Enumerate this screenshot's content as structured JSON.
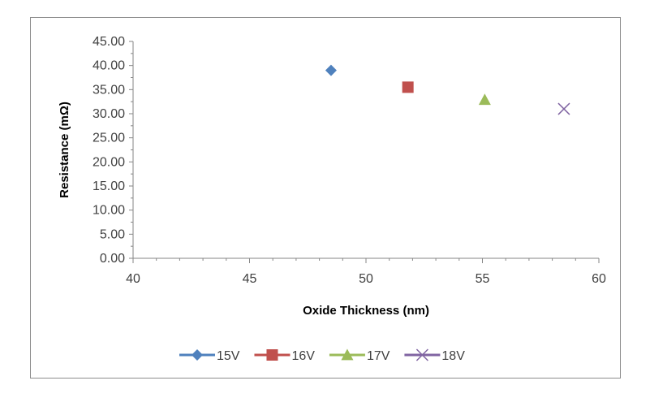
{
  "chart_data": {
    "type": "scatter",
    "xlabel": "Oxide Thickness (nm)",
    "ylabel": "Resistance (mΩ)",
    "xlim": [
      40,
      60
    ],
    "ylim": [
      0,
      45
    ],
    "x_ticks": [
      "40",
      "45",
      "50",
      "55",
      "60"
    ],
    "y_ticks": [
      "0.00",
      "5.00",
      "10.00",
      "15.00",
      "20.00",
      "25.00",
      "30.00",
      "35.00",
      "40.00",
      "45.00"
    ],
    "grid": false,
    "legend_position": "bottom",
    "series": [
      {
        "name": "15V",
        "marker": "diamond",
        "color": "#4f81bd",
        "points": [
          {
            "x": 48.5,
            "y": 39.0
          }
        ]
      },
      {
        "name": "16V",
        "marker": "square",
        "color": "#c0504d",
        "points": [
          {
            "x": 51.8,
            "y": 35.5
          }
        ]
      },
      {
        "name": "17V",
        "marker": "triangle",
        "color": "#9bbb59",
        "points": [
          {
            "x": 55.1,
            "y": 32.9
          }
        ]
      },
      {
        "name": "18V",
        "marker": "x",
        "color": "#8064a2",
        "points": [
          {
            "x": 58.5,
            "y": 31.0
          }
        ]
      }
    ]
  }
}
